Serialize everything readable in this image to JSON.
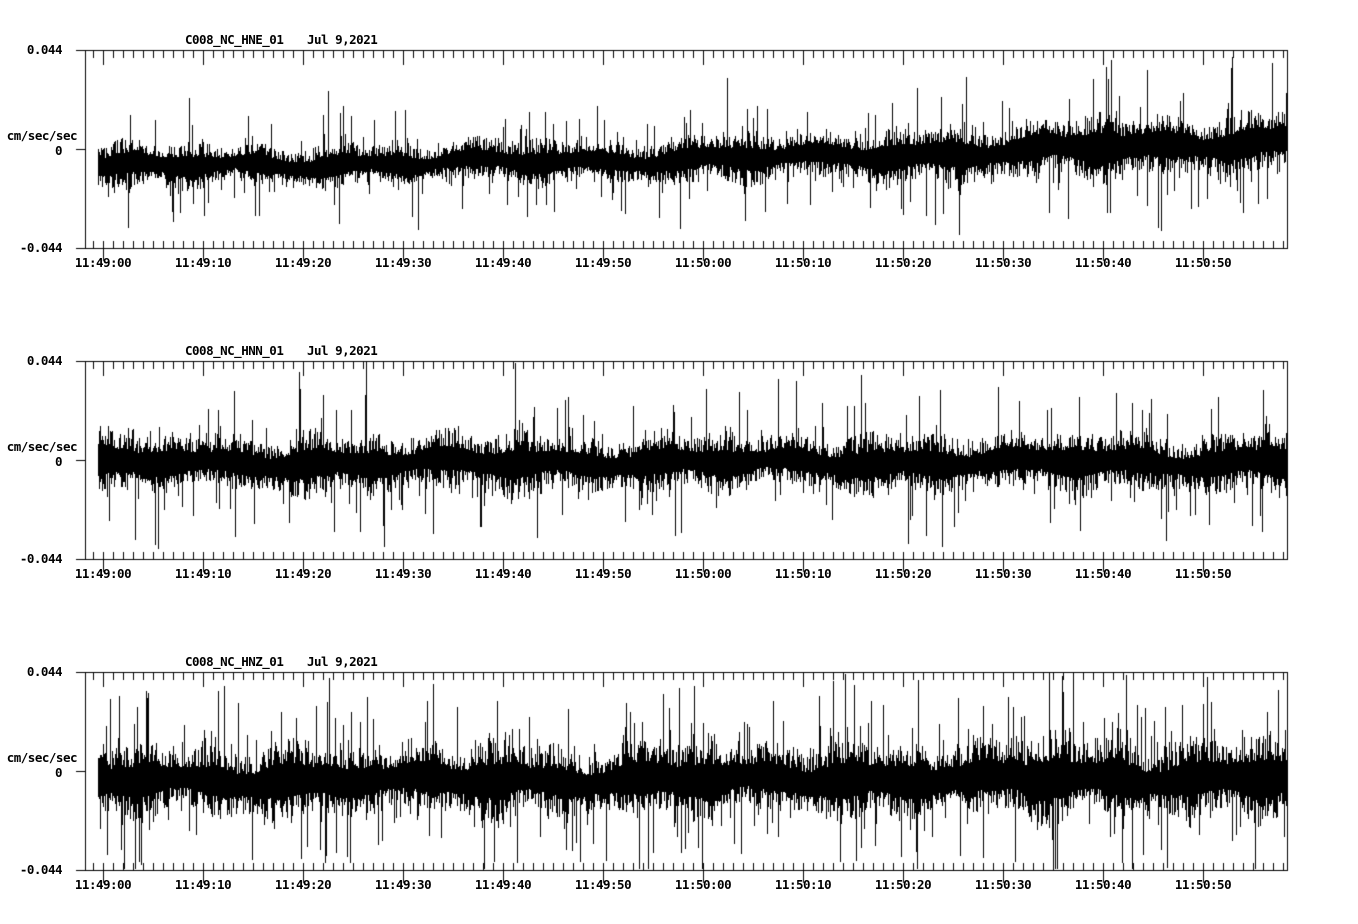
{
  "page": {
    "background": "#ffffff",
    "ink": "#000000"
  },
  "chart_data": [
    {
      "type": "line",
      "variant": "seismogram",
      "station": "C008_NC_HNE_01",
      "date_label": "Jul 9,2021",
      "ylabel": "cm/sec/sec",
      "ylim": [
        -0.044,
        0.044
      ],
      "ytick_labels": {
        "top": "0.044",
        "mid": "0",
        "bottom": "-0.044"
      },
      "xtick_labels": [
        "11:49:00",
        "11:49:10",
        "11:49:20",
        "11:49:30",
        "11:49:40",
        "11:49:50",
        "11:50:00",
        "11:50:10",
        "11:50:20",
        "11:50:30",
        "11:50:40",
        "11:50:50"
      ],
      "x_window": {
        "start": "11:48:58",
        "end": "11:50:58",
        "duration_sec": 120,
        "major_tick_sec": 10,
        "minor_tick_sec": 1
      },
      "grid": false,
      "line_color": "#000000",
      "noise_model": {
        "seed": 1007213,
        "band_halfwidth": 0.01,
        "envelope": [
          [
            0,
            0.8
          ],
          [
            25,
            0.72
          ],
          [
            50,
            0.78
          ],
          [
            70,
            0.88
          ],
          [
            90,
            1.04
          ],
          [
            110,
            1.14
          ],
          [
            119,
            1.18
          ]
        ],
        "dc_drift": [
          [
            0,
            -0.008
          ],
          [
            30,
            -0.0065
          ],
          [
            60,
            -0.0045
          ],
          [
            85,
            -0.002
          ],
          [
            105,
            0.001
          ],
          [
            119,
            0.004
          ]
        ],
        "spike_prob_up": 0.1,
        "spike_prob_down": 0.1,
        "notable_spikes": [
          [
            22.5,
            0.026
          ],
          [
            62.4,
            0.0315
          ],
          [
            104.4,
            0.035
          ],
          [
            31.5,
            -0.036
          ],
          [
            96.5,
            -0.031
          ]
        ]
      }
    },
    {
      "type": "line",
      "variant": "seismogram",
      "station": "C008_NC_HNN_01",
      "date_label": "Jul 9,2021",
      "ylabel": "cm/sec/sec",
      "ylim": [
        -0.044,
        0.044
      ],
      "ytick_labels": {
        "top": "0.044",
        "mid": "0",
        "bottom": "-0.044"
      },
      "xtick_labels": [
        "11:49:00",
        "11:49:10",
        "11:49:20",
        "11:49:30",
        "11:49:40",
        "11:49:50",
        "11:50:00",
        "11:50:10",
        "11:50:20",
        "11:50:30",
        "11:50:40",
        "11:50:50"
      ],
      "x_window": {
        "start": "11:48:58",
        "end": "11:50:58",
        "duration_sec": 120,
        "major_tick_sec": 10,
        "minor_tick_sec": 1
      },
      "grid": false,
      "line_color": "#000000",
      "noise_model": {
        "seed": 2218871,
        "band_halfwidth": 0.0102,
        "envelope": [
          [
            0,
            1.0
          ],
          [
            30,
            1.03
          ],
          [
            60,
            0.97
          ],
          [
            90,
            1.0
          ],
          [
            119,
            1.02
          ]
        ],
        "dc_drift": [
          [
            0,
            -0.0015
          ],
          [
            60,
            -0.0012
          ],
          [
            119,
            -0.001
          ]
        ],
        "spike_prob_up": 0.085,
        "spike_prob_down": 0.095,
        "notable_spikes": [
          [
            26.3,
            0.0435
          ],
          [
            67.5,
            0.036
          ],
          [
            3.2,
            -0.0355
          ],
          [
            13.2,
            -0.034
          ],
          [
            80.5,
            -0.0375
          ],
          [
            106.3,
            -0.036
          ]
        ]
      }
    },
    {
      "type": "line",
      "variant": "seismogram",
      "station": "C008_NC_HNZ_01",
      "date_label": "Jul 9,2021",
      "ylabel": "cm/sec/sec",
      "ylim": [
        -0.044,
        0.044
      ],
      "ytick_labels": {
        "top": "0.044",
        "mid": "0",
        "bottom": "-0.044"
      },
      "xtick_labels": [
        "11:49:00",
        "11:49:10",
        "11:49:20",
        "11:49:30",
        "11:49:40",
        "11:49:50",
        "11:50:00",
        "11:50:10",
        "11:50:20",
        "11:50:30",
        "11:50:40",
        "11:50:50"
      ],
      "x_window": {
        "start": "11:48:58",
        "end": "11:50:58",
        "duration_sec": 120,
        "major_tick_sec": 10,
        "minor_tick_sec": 1
      },
      "grid": false,
      "line_color": "#000000",
      "noise_model": {
        "seed": 3141592,
        "band_halfwidth": 0.013,
        "envelope": [
          [
            0,
            1.0
          ],
          [
            45,
            0.96
          ],
          [
            75,
            1.02
          ],
          [
            100,
            1.09
          ],
          [
            119,
            1.05
          ]
        ],
        "dc_drift": [
          [
            0,
            -0.0045
          ],
          [
            60,
            -0.004
          ],
          [
            119,
            -0.003
          ]
        ],
        "spike_prob_up": 0.125,
        "spike_prob_down": 0.115,
        "notable_spikes": [
          [
            22.6,
            0.0415
          ],
          [
            73.0,
            0.04
          ],
          [
            97.0,
            0.042
          ],
          [
            50.3,
            -0.04
          ],
          [
            63.8,
            -0.037
          ],
          [
            88.0,
            -0.0385
          ]
        ]
      }
    }
  ]
}
